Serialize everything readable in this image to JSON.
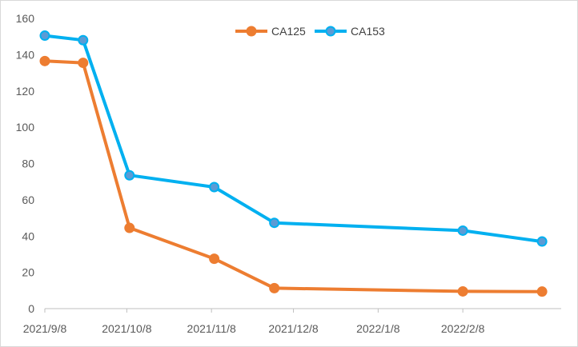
{
  "chart_data": {
    "type": "line",
    "title": "",
    "xlabel": "",
    "ylabel": "",
    "ylim": [
      0,
      160
    ],
    "y_ticks": [
      0,
      20,
      40,
      60,
      80,
      100,
      120,
      140,
      160
    ],
    "x_range": [
      "2021-09-08",
      "2022-03-16"
    ],
    "x_ticks": [
      {
        "date": "2021-09-08",
        "label": "2021/9/8"
      },
      {
        "date": "2021-10-08",
        "label": "2021/10/8"
      },
      {
        "date": "2021-11-08",
        "label": "2021/11/8"
      },
      {
        "date": "2021-12-08",
        "label": "2021/12/8"
      },
      {
        "date": "2022-01-08",
        "label": "2022/1/8"
      },
      {
        "date": "2022-02-08",
        "label": "2022/2/8"
      }
    ],
    "grid": false,
    "legend": "top-center",
    "series": [
      {
        "name": "CA125",
        "color": "#ED7D31",
        "marker_fill": "#ED7D31",
        "points": [
          {
            "x": "2021-09-08",
            "y": 136.5
          },
          {
            "x": "2021-09-22",
            "y": 135.5
          },
          {
            "x": "2021-10-09",
            "y": 44.5
          },
          {
            "x": "2021-11-09",
            "y": 27.5
          },
          {
            "x": "2021-12-01",
            "y": 11.3
          },
          {
            "x": "2022-02-08",
            "y": 9.5
          },
          {
            "x": "2022-03-09",
            "y": 9.4
          }
        ]
      },
      {
        "name": "CA153",
        "color": "#00B0F0",
        "marker_fill": "#5B9BD5",
        "points": [
          {
            "x": "2021-09-08",
            "y": 150.5
          },
          {
            "x": "2021-09-22",
            "y": 148.0
          },
          {
            "x": "2021-10-09",
            "y": 73.5
          },
          {
            "x": "2021-11-09",
            "y": 67.0
          },
          {
            "x": "2021-12-01",
            "y": 47.3
          },
          {
            "x": "2022-02-08",
            "y": 43.0
          },
          {
            "x": "2022-03-09",
            "y": 37.0
          }
        ]
      }
    ]
  }
}
